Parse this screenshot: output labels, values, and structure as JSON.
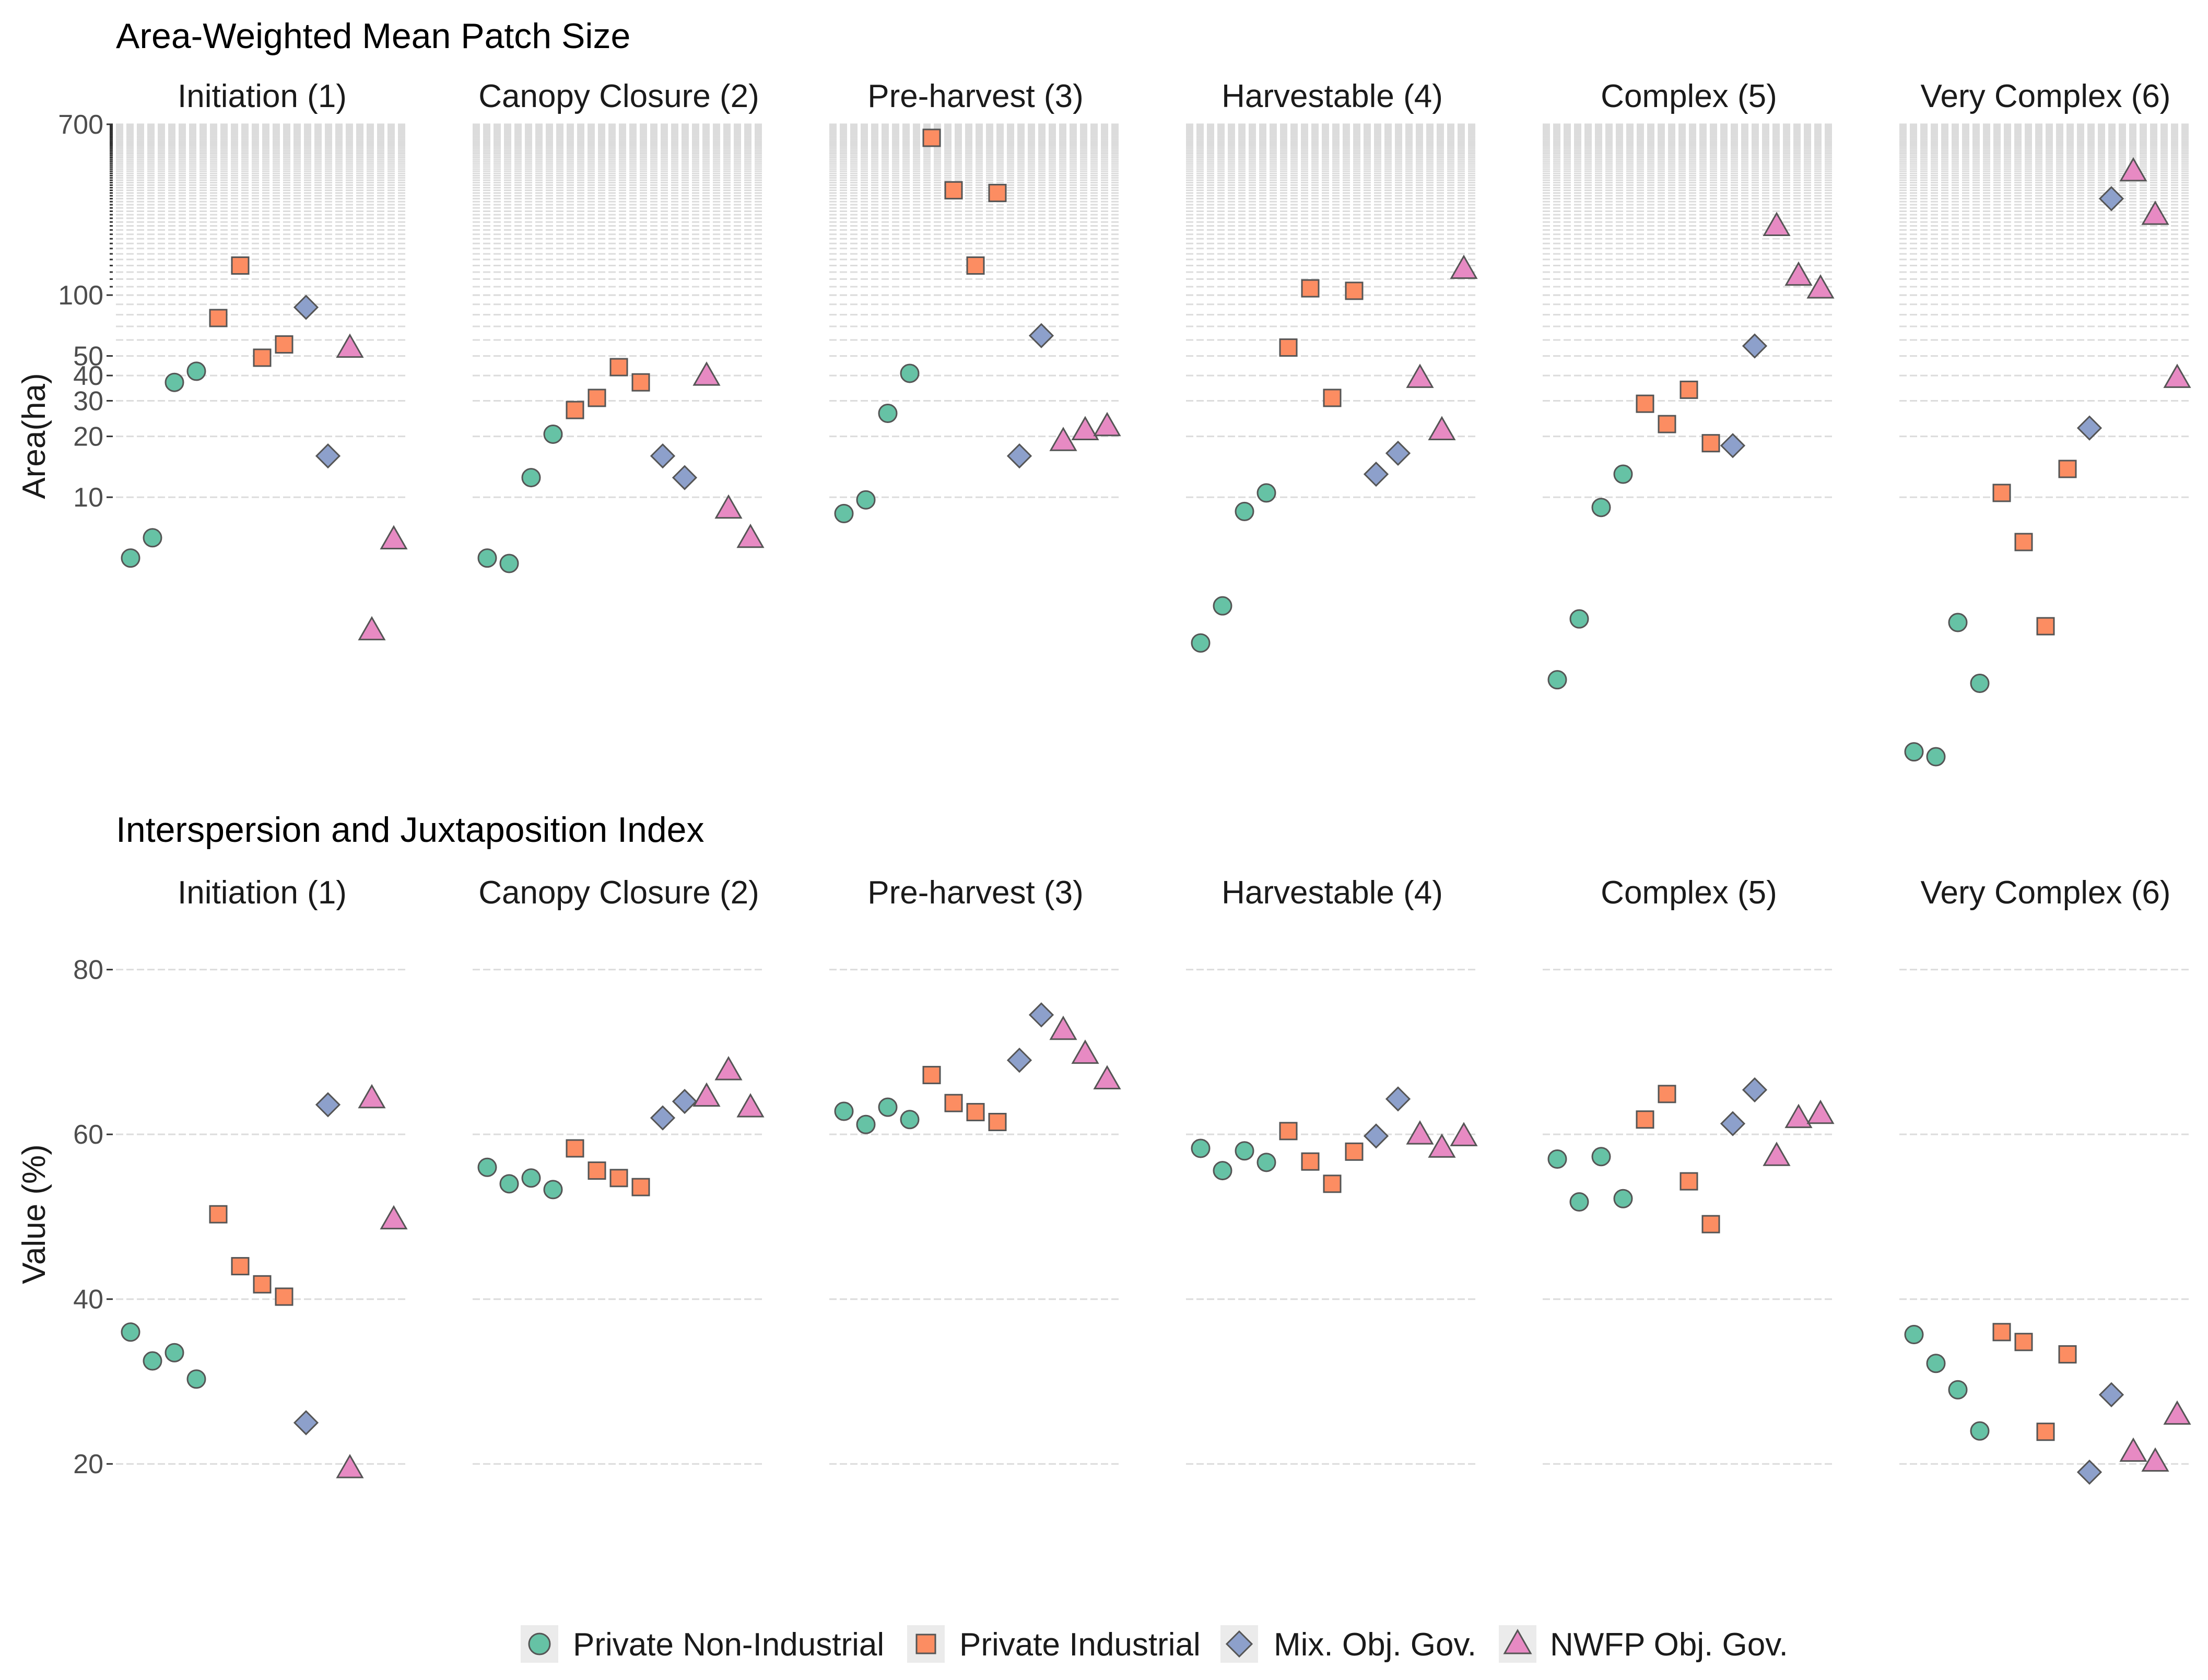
{
  "colors": {
    "private_non_industrial": "#66c2a5",
    "private_industrial": "#fc8d62",
    "mix_obj_gov": "#8da0cb",
    "nwfp_obj_gov": "#e78ac3",
    "grid": "#dcdcdc",
    "stroke": "#555555"
  },
  "legend": {
    "items": [
      {
        "key": "private_non_industrial",
        "label": "Private Non-Industrial",
        "shape": "circle"
      },
      {
        "key": "private_industrial",
        "label": "Private Industrial",
        "shape": "square"
      },
      {
        "key": "mix_obj_gov",
        "label": "Mix. Obj. Gov.",
        "shape": "diamond"
      },
      {
        "key": "nwfp_obj_gov",
        "label": "NWFP Obj. Gov.",
        "shape": "triangle"
      }
    ]
  },
  "chart_data": [
    {
      "type": "scatter",
      "title": "Area-Weighted Mean Patch Size",
      "ylabel": "Area(ha)",
      "yscale": "log",
      "ylim": [
        0.6,
        700
      ],
      "yticks": [
        10,
        20,
        30,
        40,
        50,
        100,
        700
      ],
      "facets": [
        "Initiation (1)",
        "Canopy Closure (2)",
        "Pre-harvest (3)",
        "Harvestable (4)",
        "Complex (5)",
        "Very Complex (6)"
      ],
      "series": [
        {
          "key": "private_non_industrial",
          "name": "Private Non-Industrial",
          "x": [
            1,
            2,
            3,
            4
          ],
          "values": [
            [
              5.0,
              6.3,
              37,
              42
            ],
            [
              5.0,
              4.7,
              12.5,
              20.5
            ],
            [
              8.3,
              9.7,
              26,
              41
            ],
            [
              1.9,
              2.9,
              8.5,
              10.5
            ],
            [
              1.25,
              2.5,
              8.9,
              13
            ],
            [
              0.55,
              0.52,
              2.4,
              1.2
            ]
          ]
        },
        {
          "key": "private_industrial",
          "name": "Private Industrial",
          "x": [
            5,
            6,
            7,
            8
          ],
          "values": [
            [
              77,
              140,
              49,
              57
            ],
            [
              27,
              31,
              44,
              37
            ],
            [
              600,
              330,
              140,
              320
            ],
            [
              55,
              108,
              31,
              105
            ],
            [
              29,
              23,
              34,
              18.5
            ],
            [
              10.5,
              6.0,
              2.3,
              13.8
            ]
          ]
        },
        {
          "key": "mix_obj_gov",
          "name": "Mix. Obj. Gov.",
          "x": [
            9,
            10
          ],
          "values": [
            [
              87,
              16
            ],
            [
              16,
              12.5
            ],
            [
              16,
              63
            ],
            [
              13,
              16.5
            ],
            [
              18,
              56
            ],
            [
              22,
              300
            ]
          ]
        },
        {
          "key": "nwfp_obj_gov",
          "name": "NWFP Obj. Gov.",
          "x": [
            11,
            12,
            13
          ],
          "values": [
            [
              55,
              2.2,
              6.2
            ],
            [
              40,
              8.8,
              6.3
            ],
            [
              19,
              21.5,
              22.5
            ],
            [
              39,
              21.5,
              135
            ],
            [
              220,
              125,
              108
            ],
            [
              410,
              250,
              39
            ]
          ]
        }
      ]
    },
    {
      "type": "scatter",
      "title": "Interspersion and Juxtaposition Index",
      "ylabel": "Value (%)",
      "yscale": "linear",
      "ylim": [
        14.5,
        86
      ],
      "yticks": [
        20,
        40,
        60,
        80
      ],
      "facets": [
        "Initiation (1)",
        "Canopy Closure (2)",
        "Pre-harvest (3)",
        "Harvestable (4)",
        "Complex (5)",
        "Very Complex (6)"
      ],
      "series": [
        {
          "key": "private_non_industrial",
          "name": "Private Non-Industrial",
          "x": [
            1,
            2,
            3,
            4
          ],
          "values": [
            [
              36,
              32.5,
              33.5,
              30.3
            ],
            [
              56,
              54,
              54.7,
              53.3
            ],
            [
              62.8,
              61.2,
              63.3,
              61.8
            ],
            [
              58.3,
              55.6,
              58,
              56.6
            ],
            [
              57,
              51.8,
              57.3,
              52.2
            ],
            [
              35.7,
              32.2,
              29,
              24
            ]
          ]
        },
        {
          "key": "private_industrial",
          "name": "Private Industrial",
          "x": [
            5,
            6,
            7,
            8
          ],
          "values": [
            [
              50.3,
              44,
              41.8,
              40.3
            ],
            [
              58.3,
              55.6,
              54.7,
              53.6
            ],
            [
              67.2,
              63.8,
              62.7,
              61.5
            ],
            [
              60.4,
              56.7,
              54,
              57.9
            ],
            [
              61.8,
              64.9,
              54.3,
              49.1
            ],
            [
              36,
              34.8,
              23.9,
              33.3
            ]
          ]
        },
        {
          "key": "mix_obj_gov",
          "name": "Mix. Obj. Gov.",
          "x": [
            9,
            10
          ],
          "values": [
            [
              25,
              63.6
            ],
            [
              62,
              64
            ],
            [
              69,
              74.5
            ],
            [
              59.8,
              64.3
            ],
            [
              61.3,
              65.4
            ],
            [
              19,
              28.4
            ]
          ]
        },
        {
          "key": "nwfp_obj_gov",
          "name": "NWFP Obj. Gov.",
          "x": [
            11,
            12,
            13
          ],
          "values": [
            [
              19.5,
              64.4,
              49.7
            ],
            [
              64.6,
              67.8,
              63.3
            ],
            [
              72.7,
              69.8,
              66.7
            ],
            [
              60,
              58.4,
              59.8
            ],
            [
              57.4,
              62,
              62.5
            ],
            [
              21.5,
              20.3,
              26
            ]
          ]
        }
      ]
    }
  ]
}
